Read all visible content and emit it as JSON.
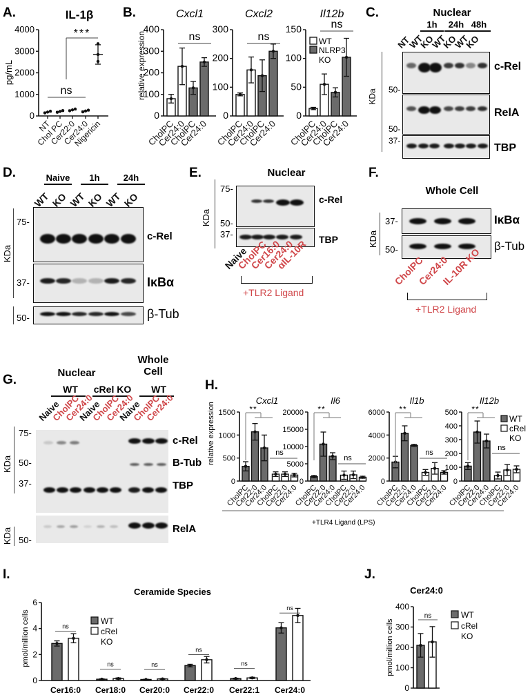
{
  "panel_labels": {
    "A": "A.",
    "B": "B.",
    "C": "C.",
    "D": "D.",
    "E": "E.",
    "F": "F.",
    "G": "G.",
    "H": "H.",
    "I": "I.",
    "J": "J."
  },
  "colors": {
    "wt_bar": "#6b6b6b",
    "ko_bar": "#ffffff",
    "treatment_red": "#d0474a",
    "blot_bg": "#e9e9e9"
  },
  "panel_A": {
    "title": "IL-1β",
    "ylabel": "pg/mL",
    "sig": "***",
    "ns": "ns"
  },
  "panel_B": {
    "ylabel": "relative expression",
    "legend": {
      "wt": "WT",
      "ko_line1": "NLRP3",
      "ko_line2": "KO"
    },
    "ns": "ns"
  },
  "panel_C": {
    "title": "Nuclear",
    "kda": "KDa",
    "groups": [
      "1h",
      "24h",
      "48h"
    ],
    "lanes": [
      "NT",
      "WT",
      "KO",
      "WT",
      "KO",
      "WT",
      "KO"
    ],
    "proteins": [
      "c-Rel",
      "RelA",
      "TBP"
    ],
    "mw": [
      "50-",
      "50-",
      "37-"
    ]
  },
  "panel_D": {
    "kda": "KDa",
    "groups": [
      "Naive",
      "1h",
      "24h"
    ],
    "lanes": [
      "WT",
      "KO",
      "WT",
      "KO",
      "WT",
      "KO"
    ],
    "proteins": [
      "c-Rel",
      "IκBα",
      "β-Tub"
    ],
    "mw": [
      "75-",
      "37-",
      "50-"
    ]
  },
  "panel_E": {
    "title": "Nuclear",
    "kda": "KDa",
    "lanes": [
      "Naive",
      "CholPC",
      "Cer16:0",
      "Cer24:0",
      "αIL-10R"
    ],
    "proteins": [
      "c-Rel",
      "TBP"
    ],
    "mw": [
      "75-",
      "50-",
      "37-"
    ],
    "ligand": "+TLR2 Ligand"
  },
  "panel_F": {
    "title": "Whole Cell",
    "kda": "KDa",
    "lanes": [
      "CholPC",
      "Cer24:0",
      "IL-10R KO"
    ],
    "proteins": [
      "IκBα",
      "β-Tub"
    ],
    "mw": [
      "37-",
      "50-"
    ],
    "ligand": "+TLR2 Ligand"
  },
  "panel_G": {
    "header_nuclear": "Nuclear",
    "header_whole_line1": "Whole",
    "header_whole_line2": "Cell",
    "groups": [
      "WT",
      "cRel KO",
      "WT"
    ],
    "lanes": [
      "Naive",
      "CholPC",
      "Cer24:0",
      "Naive",
      "CholPC",
      "Cer24:0",
      "Naive",
      "CholPC",
      "Cer24:0"
    ],
    "proteins": [
      "c-Rel",
      "B-Tub",
      "TBP",
      "RelA"
    ],
    "mw": [
      "75-",
      "50-",
      "37-",
      "50-"
    ],
    "kda": "KDa"
  },
  "panel_H": {
    "ylabel": "relative expression",
    "ligand": "+TLR4 Ligand (LPS)",
    "legend": {
      "wt": "WT",
      "ko_line1": "cRel",
      "ko_line2": "KO"
    }
  },
  "panel_I": {
    "title": "Ceramide Species",
    "ylabel": "pmol/million cells",
    "legend": {
      "wt": "WT",
      "ko_line1": "cRel",
      "ko_line2": "KO"
    }
  },
  "panel_J": {
    "title": "Cer24:0",
    "ylabel": "pmol/million cells",
    "legend": {
      "wt": "WT",
      "ko_line1": "cRel",
      "ko_line2": "KO"
    },
    "ns": "ns"
  },
  "chart_data": [
    {
      "panel": "A",
      "type": "scatter",
      "title": "IL-1β",
      "ylabel": "pg/mL",
      "ylim": [
        0,
        4000
      ],
      "yticks": [
        0,
        1000,
        2000,
        3000,
        4000
      ],
      "categories": [
        "NT",
        "Chol PC",
        "Cer22:0",
        "Cer24:0",
        "Nigericin"
      ],
      "values": [
        180,
        210,
        280,
        230,
        2850
      ],
      "err": [
        20,
        20,
        80,
        80,
        450
      ],
      "annotations": [
        {
          "text": "ns",
          "span": [
            "NT",
            "Cer24:0"
          ]
        },
        {
          "text": "***",
          "span": [
            "Cer22:0",
            "Nigericin"
          ]
        }
      ]
    },
    {
      "panel": "B",
      "type": "bar",
      "title": "Cxcl1",
      "ylim": [
        0,
        400
      ],
      "yticks": [
        0,
        100,
        200,
        300,
        400
      ],
      "categories": [
        "CholPC",
        "Cer24:0",
        "CholPC",
        "Cer24:0"
      ],
      "series": [
        {
          "name": "WT",
          "values": [
            80,
            230,
            null,
            null
          ]
        },
        {
          "name": "NLRP3 KO",
          "values": [
            null,
            null,
            130,
            250
          ]
        }
      ],
      "err": [
        20,
        85,
        30,
        20
      ],
      "annotations": [
        {
          "text": "ns"
        }
      ]
    },
    {
      "panel": "B",
      "type": "bar",
      "title": "Cxcl2",
      "ylim": [
        0,
        300
      ],
      "yticks": [
        0,
        100,
        200,
        300
      ],
      "categories": [
        "CholPC",
        "Cer24:0",
        "CholPC",
        "Cer24:0"
      ],
      "series": [
        {
          "name": "WT",
          "values": [
            75,
            160,
            null,
            null
          ]
        },
        {
          "name": "NLRP3 KO",
          "values": [
            null,
            null,
            140,
            225
          ]
        }
      ],
      "err": [
        5,
        45,
        55,
        25
      ],
      "annotations": [
        {
          "text": "ns"
        }
      ]
    },
    {
      "panel": "B",
      "type": "bar",
      "title": "Il12b",
      "ylim": [
        0,
        150
      ],
      "yticks": [
        0,
        50,
        100,
        150
      ],
      "categories": [
        "CholPC",
        "Cer24:0",
        "CholPC",
        "Cer24:0"
      ],
      "series": [
        {
          "name": "WT",
          "values": [
            13,
            55,
            null,
            null
          ]
        },
        {
          "name": "NLRP3 KO",
          "values": [
            null,
            null,
            41,
            102
          ]
        }
      ],
      "err": [
        2,
        18,
        8,
        33
      ],
      "legend": [
        "WT",
        "NLRP3 KO"
      ],
      "annotations": [
        {
          "text": "ns"
        }
      ]
    },
    {
      "panel": "H",
      "type": "bar",
      "title": "Cxcl1",
      "ylim": [
        0,
        1500
      ],
      "yticks": [
        0,
        500,
        1000,
        1500
      ],
      "categories": [
        "CholPC",
        "Cer22:0",
        "Cer24:0",
        "CholPC",
        "Cer22:0",
        "Cer24:0"
      ],
      "series": [
        {
          "name": "WT",
          "values": [
            320,
            1070,
            720,
            null,
            null,
            null
          ]
        },
        {
          "name": "cRel KO",
          "values": [
            null,
            null,
            null,
            150,
            150,
            130
          ]
        }
      ],
      "err": [
        100,
        180,
        280,
        50,
        50,
        40
      ],
      "annotations": [
        {
          "text": "**"
        },
        {
          "text": "ns"
        }
      ]
    },
    {
      "panel": "H",
      "type": "bar",
      "title": "Il6",
      "ylim": [
        0,
        20000
      ],
      "yticks": [
        0,
        5000,
        10000,
        15000,
        20000
      ],
      "categories": [
        "CholPC",
        "Cer22:0",
        "Cer24:0",
        "CholPC",
        "Cer22:0",
        "Cer24:0"
      ],
      "series": [
        {
          "name": "WT",
          "values": [
            1300,
            10700,
            7200,
            null,
            null,
            null
          ]
        },
        {
          "name": "cRel KO",
          "values": [
            null,
            null,
            null,
            1700,
            1800,
            1100
          ]
        }
      ],
      "err": [
        300,
        3500,
        1000,
        1200,
        1100,
        300
      ],
      "annotations": [
        {
          "text": "**"
        },
        {
          "text": "ns"
        }
      ]
    },
    {
      "panel": "H",
      "type": "bar",
      "title": "Il1b",
      "ylim": [
        0,
        6000
      ],
      "yticks": [
        0,
        2000,
        4000,
        6000
      ],
      "categories": [
        "CholPC",
        "Cer22:0",
        "Cer24:0",
        "CholPC",
        "Cer22:0",
        "Cer24:0"
      ],
      "series": [
        {
          "name": "WT",
          "values": [
            1650,
            4150,
            3100,
            null,
            null,
            null
          ]
        },
        {
          "name": "cRel KO",
          "values": [
            null,
            null,
            null,
            750,
            1100,
            750
          ]
        }
      ],
      "err": [
        500,
        650,
        80,
        250,
        500,
        150
      ],
      "annotations": [
        {
          "text": "**"
        },
        {
          "text": "ns"
        }
      ]
    },
    {
      "panel": "H",
      "type": "bar",
      "title": "Il12b",
      "ylim": [
        0,
        500
      ],
      "yticks": [
        0,
        100,
        200,
        300,
        400,
        500
      ],
      "categories": [
        "CholPC",
        "Cer22:0",
        "Cer24:0",
        "CholPC",
        "Cer22:0",
        "Cer24:0"
      ],
      "series": [
        {
          "name": "WT",
          "values": [
            108,
            355,
            290,
            null,
            null,
            null
          ]
        },
        {
          "name": "cRel KO",
          "values": [
            null,
            null,
            null,
            40,
            80,
            85
          ]
        }
      ],
      "err": [
        25,
        80,
        50,
        25,
        40,
        25
      ],
      "legend": [
        "WT",
        "cRel KO"
      ],
      "annotations": [
        {
          "text": "**"
        },
        {
          "text": "ns"
        }
      ]
    },
    {
      "panel": "I",
      "type": "bar",
      "title": "Ceramide Species",
      "ylabel": "pmol/million cells",
      "ylim": [
        0,
        6
      ],
      "yticks": [
        0,
        2,
        4,
        6
      ],
      "categories": [
        "Cer16:0",
        "Cer18:0",
        "Cer20:0",
        "Cer22:0",
        "Cer22:1",
        "Cer24:0"
      ],
      "series": [
        {
          "name": "WT",
          "values": [
            2.85,
            0.1,
            0.08,
            1.15,
            0.15,
            4.05
          ]
        },
        {
          "name": "cRel KO",
          "values": [
            3.25,
            0.15,
            0.12,
            1.6,
            0.2,
            5.0
          ]
        }
      ],
      "err_wt": [
        0.2,
        0.03,
        0.02,
        0.1,
        0.03,
        0.4
      ],
      "err_ko": [
        0.35,
        0.05,
        0.03,
        0.25,
        0.05,
        0.55
      ],
      "annotations": [
        "ns",
        "ns",
        "ns",
        "ns",
        "ns",
        "ns"
      ]
    },
    {
      "panel": "J",
      "type": "bar",
      "title": "Cer24:0",
      "ylabel": "pmol/million cells",
      "ylim": [
        0,
        400
      ],
      "yticks": [
        0,
        100,
        200,
        300,
        400
      ],
      "categories": [
        "WT",
        "cRel KO"
      ],
      "values": [
        210,
        227
      ],
      "err": [
        58,
        75
      ],
      "annotations": [
        "ns"
      ]
    }
  ]
}
